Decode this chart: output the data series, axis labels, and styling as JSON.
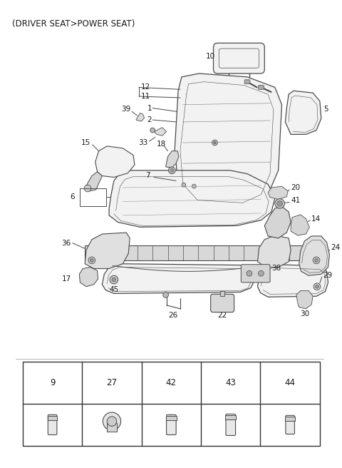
{
  "title": "(DRIVER SEAT>POWER SEAT)",
  "bg_color": "#ffffff",
  "line_color": "#4a4a4a",
  "text_color": "#1a1a1a",
  "fig_width": 4.8,
  "fig_height": 6.56,
  "dpi": 100
}
